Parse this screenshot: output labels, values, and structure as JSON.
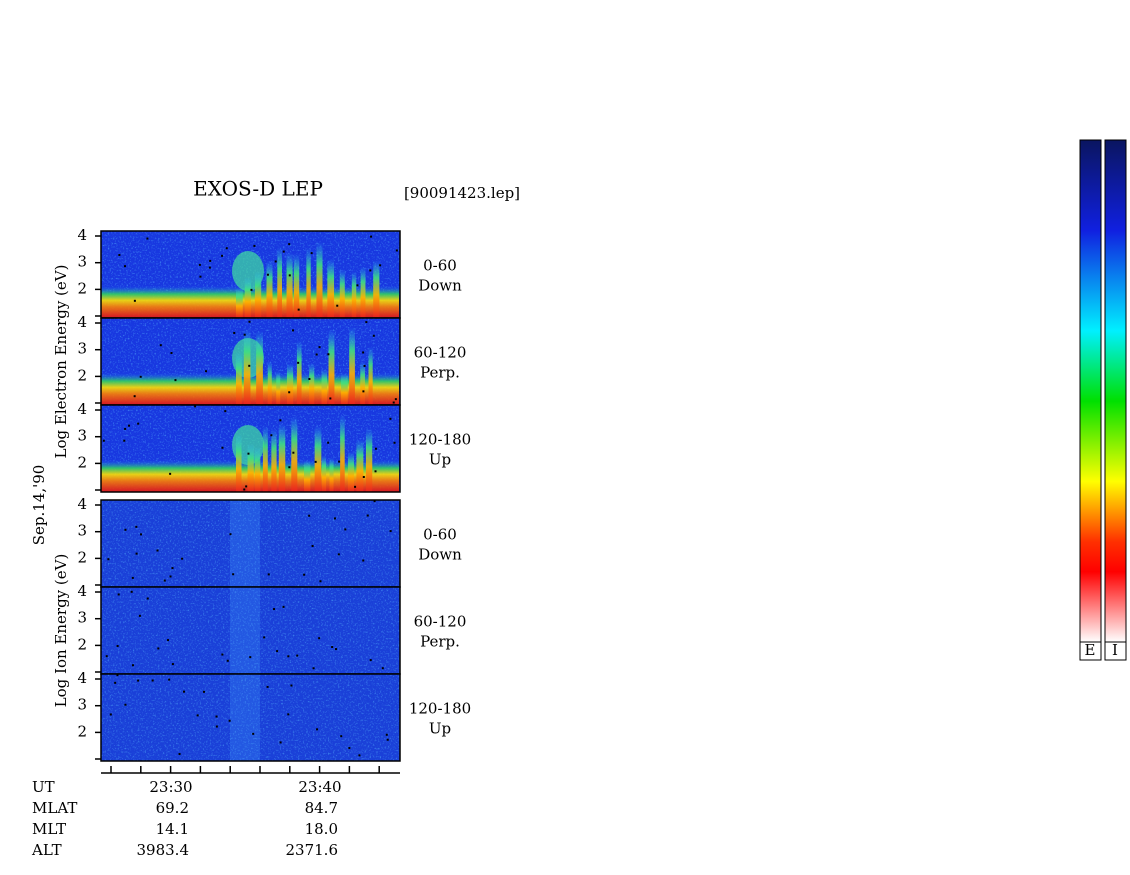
{
  "title": "EXOS-D LEP",
  "file": "[90091423.lep]",
  "date": "Sep.14,'90",
  "groups": [
    {
      "axis_label": "Log Electron Energy (eV)",
      "panels": [
        {
          "angle": "0-60",
          "direction": "Down"
        },
        {
          "angle": "60-120",
          "direction": "Perp."
        },
        {
          "angle": "120-180",
          "direction": "Up"
        }
      ]
    },
    {
      "axis_label": "Log Ion Energy (eV)",
      "panels": [
        {
          "angle": "0-60",
          "direction": "Down"
        },
        {
          "angle": "60-120",
          "direction": "Perp."
        },
        {
          "angle": "120-180",
          "direction": "Up"
        }
      ]
    }
  ],
  "energy_ticks": [
    "4",
    "3",
    "2"
  ],
  "ephemeris": [
    {
      "name": "UT",
      "values": [
        "23:30",
        "23:40"
      ]
    },
    {
      "name": "MLAT",
      "values": [
        "69.2",
        "84.7"
      ]
    },
    {
      "name": "MLT",
      "values": [
        "14.1",
        "18.0"
      ]
    },
    {
      "name": "ALT",
      "values": [
        "3983.4",
        "2371.6"
      ]
    }
  ],
  "colorbar_labels": [
    "E",
    "I"
  ]
}
